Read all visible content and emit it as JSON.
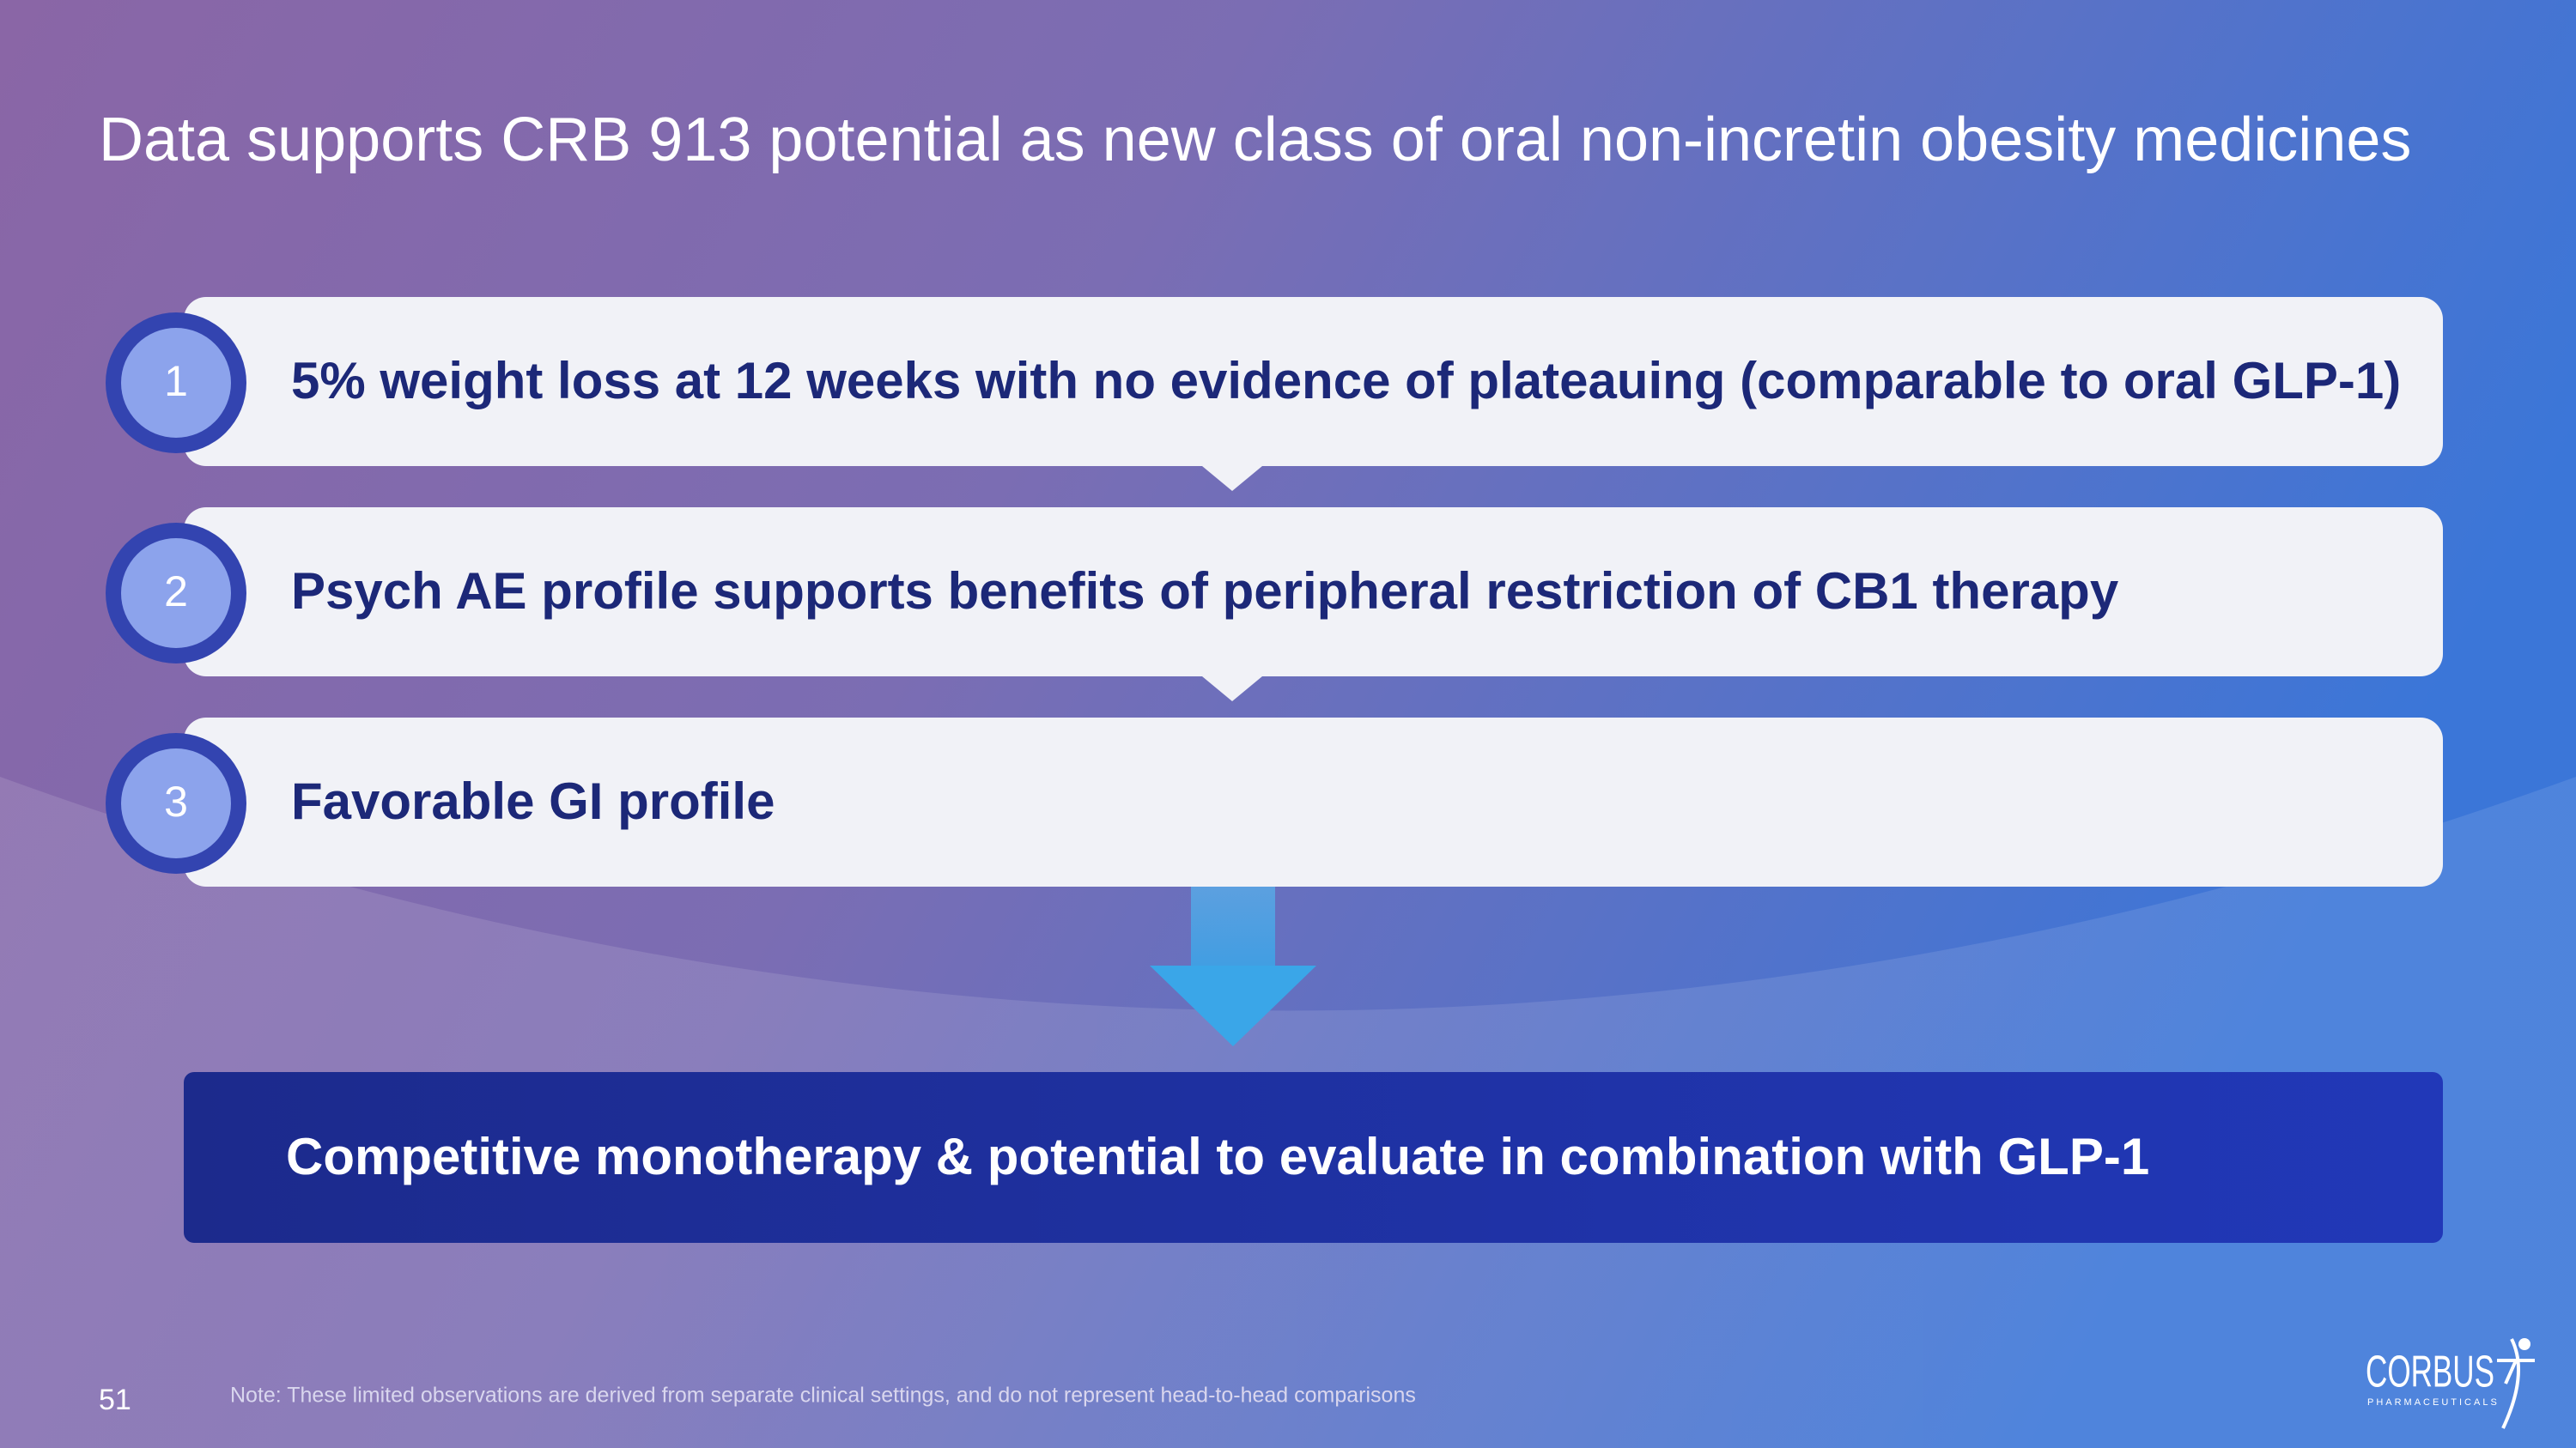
{
  "header": {
    "title": "Data supports CRB 913 potential as new class of oral non-incretin obesity medicines"
  },
  "items": [
    {
      "number": "1",
      "text": "5% weight loss at 12 weeks with no evidence of plateauing (comparable to oral GLP-1)"
    },
    {
      "number": "2",
      "text": "Psych AE profile supports benefits of peripheral restriction of CB1 therapy"
    },
    {
      "number": "3",
      "text": "Favorable GI profile"
    }
  ],
  "conclusion": "Competitive monotherapy & potential to evaluate in combination with GLP-1",
  "footer": {
    "page_number": "51",
    "note": "Note: These limited observations are derived from separate clinical settings, and do not represent head-to-head comparisons"
  },
  "logo": {
    "name": "CORBUS",
    "subtitle": "PHARMACEUTICALS"
  }
}
